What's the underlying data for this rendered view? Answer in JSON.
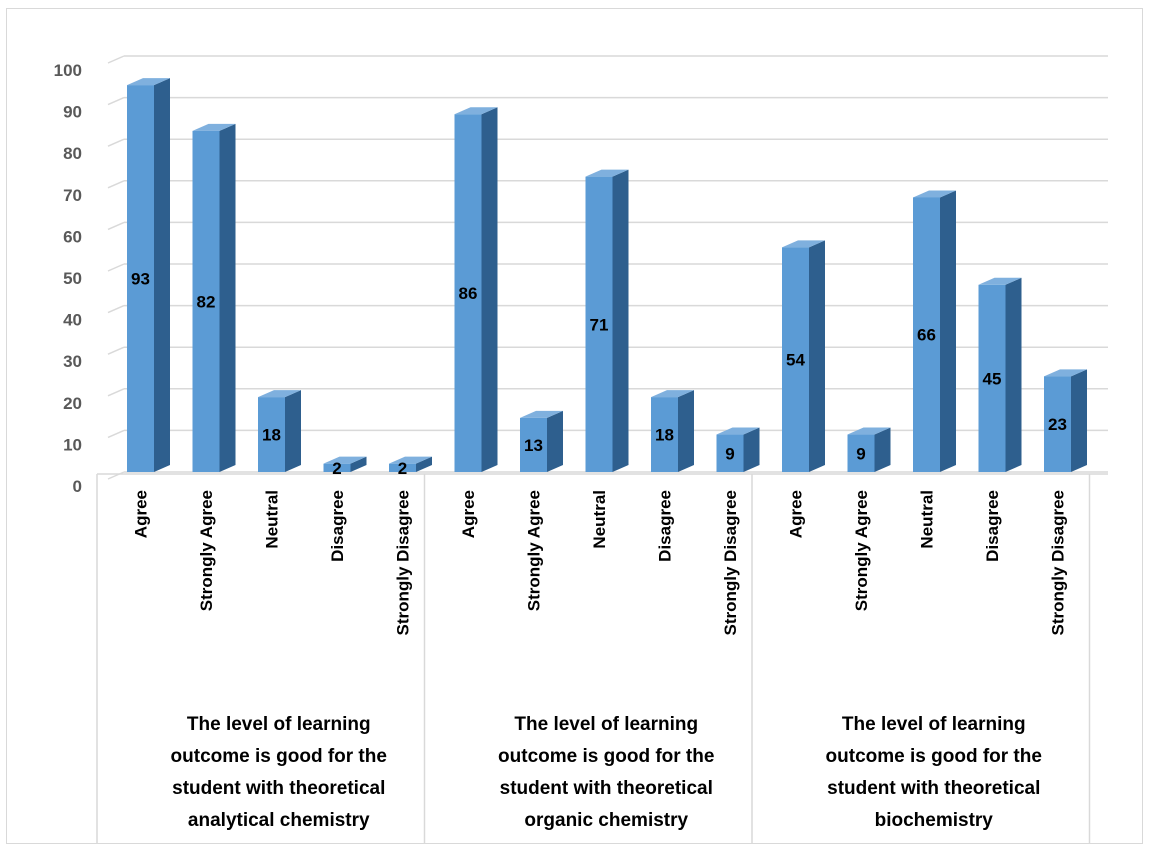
{
  "chart_data": {
    "type": "bar",
    "groups": [
      {
        "label": "The level of learning outcome is good for the student with theoretical analytical chemistry",
        "label_lines": [
          "The level of learning",
          "outcome is good for the",
          "student with theoretical",
          "analytical chemistry"
        ],
        "categories": [
          "Agree",
          "Strongly Agree",
          "Neutral",
          "Disagree",
          "Strongly Disagree"
        ],
        "values": [
          93,
          82,
          18,
          2,
          2
        ]
      },
      {
        "label": "The level of learning outcome is good for the student with theoretical organic chemistry",
        "label_lines": [
          "The level of learning",
          "outcome is good for the",
          "student with theoretical",
          "organic chemistry"
        ],
        "categories": [
          "Agree",
          "Strongly Agree",
          "Neutral",
          "Disagree",
          "Strongly Disagree"
        ],
        "values": [
          86,
          13,
          71,
          18,
          9
        ]
      },
      {
        "label": "The level of learning outcome is good for the student with theoretical biochemistry",
        "label_lines": [
          "The level of learning",
          "outcome is good for the",
          "student with theoretical",
          "biochemistry"
        ],
        "categories": [
          "Agree",
          "Strongly Agree",
          "Neutral",
          "Disagree",
          "Strongly Disagree"
        ],
        "values": [
          54,
          9,
          66,
          45,
          23
        ]
      }
    ],
    "ylim": [
      0,
      100
    ],
    "yticks": [
      0,
      10,
      20,
      30,
      40,
      50,
      60,
      70,
      80,
      90,
      100
    ],
    "grid": true,
    "legend": "none",
    "data_labels": true,
    "bar_style": "3d",
    "colors": {
      "bar_front": "#5b9bd5",
      "bar_side": "#2e5f8e",
      "bar_top": "#7fb0de",
      "grid": "#d9d9d9",
      "axis_text": "#595959"
    }
  }
}
